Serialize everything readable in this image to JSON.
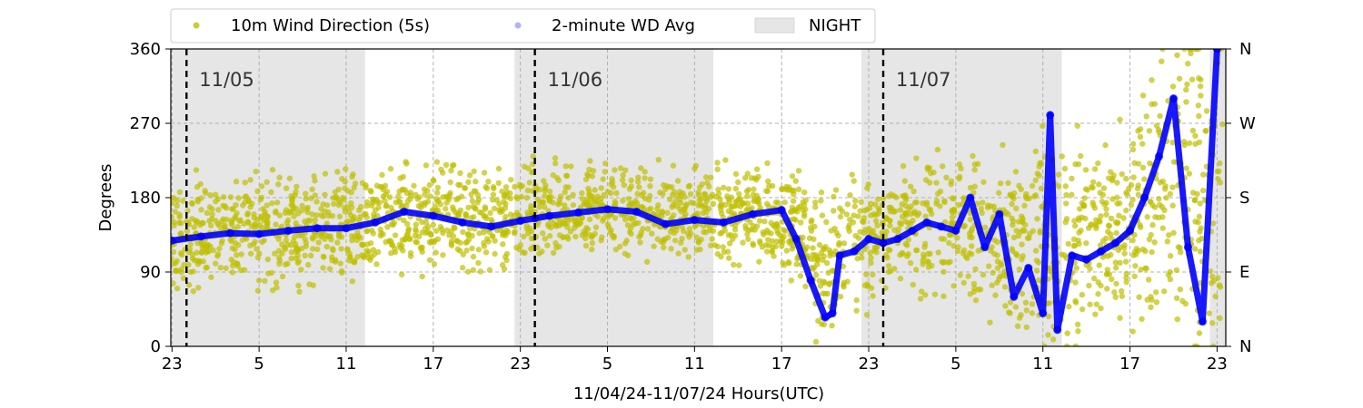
{
  "chart_data": {
    "type": "scatter",
    "title": "",
    "xlabel": "11/04/24-11/07/24  Hours(UTC)",
    "ylabel": "Degrees",
    "xlim": [
      -0.08,
      72.6
    ],
    "ylim": [
      0,
      360
    ],
    "x_unit": "hours since 23:00 UTC 11/04/24",
    "x_ticks": [
      {
        "x": 0,
        "label": "23"
      },
      {
        "x": 6,
        "label": "5"
      },
      {
        "x": 12,
        "label": "11"
      },
      {
        "x": 18,
        "label": "17"
      },
      {
        "x": 24,
        "label": "23"
      },
      {
        "x": 30,
        "label": "5"
      },
      {
        "x": 36,
        "label": "11"
      },
      {
        "x": 42,
        "label": "17"
      },
      {
        "x": 48,
        "label": "23"
      },
      {
        "x": 54,
        "label": "5"
      },
      {
        "x": 60,
        "label": "11"
      },
      {
        "x": 66,
        "label": "17"
      },
      {
        "x": 72,
        "label": "23"
      }
    ],
    "y_ticks": [
      0,
      90,
      180,
      270,
      360
    ],
    "y2_ticks": [
      {
        "y": 0,
        "label": "N"
      },
      {
        "y": 90,
        "label": "E"
      },
      {
        "y": 180,
        "label": "S"
      },
      {
        "y": 270,
        "label": "W"
      },
      {
        "y": 360,
        "label": "N"
      }
    ],
    "grid": true,
    "legend": {
      "placement": "above-top",
      "entries": [
        {
          "label": "10m Wind Direction (5s)",
          "type": "marker",
          "color": "#bfbf00"
        },
        {
          "label": "2-minute WD Avg",
          "type": "marker",
          "color": "#0000ff"
        },
        {
          "label": "NIGHT",
          "type": "patch",
          "color": "#e6e6e6"
        }
      ]
    },
    "night_spans": [
      [
        0,
        13.3
      ],
      [
        23.6,
        37.3
      ],
      [
        47.5,
        61.3
      ],
      [
        71.5,
        72.6
      ]
    ],
    "day_markers": [
      {
        "x": 1.0,
        "label": "11/05"
      },
      {
        "x": 25.0,
        "label": "11/06"
      },
      {
        "x": 49.0,
        "label": "11/07"
      }
    ],
    "series": [
      {
        "name": "2-minute WD Avg",
        "color": "#0000ff",
        "x": [
          0,
          2,
          4,
          6,
          8,
          10,
          12,
          14,
          16,
          18,
          20,
          22,
          24,
          25,
          26,
          28,
          30,
          32,
          34,
          36,
          38,
          40,
          42,
          43,
          44,
          45,
          45.5,
          46,
          47,
          48,
          49,
          50,
          51,
          52,
          53,
          54,
          55,
          56,
          57,
          58,
          59,
          60,
          60.5,
          61,
          62,
          63,
          64,
          65,
          66,
          67,
          68,
          69,
          70,
          71,
          72
        ],
        "y": [
          128,
          133,
          137,
          136,
          140,
          143,
          143,
          150,
          163,
          158,
          150,
          145,
          152,
          155,
          158,
          162,
          166,
          163,
          148,
          153,
          150,
          160,
          165,
          130,
          80,
          35,
          40,
          110,
          115,
          130,
          125,
          130,
          140,
          150,
          145,
          140,
          180,
          120,
          160,
          60,
          95,
          40,
          280,
          20,
          110,
          105,
          115,
          125,
          140,
          180,
          230,
          300,
          120,
          30,
          360
        ]
      },
      {
        "name": "10m Wind Direction (5s)",
        "color": "#bfbf00",
        "band": {
          "x": [
            0,
            4,
            8,
            12,
            16,
            20,
            24,
            28,
            32,
            36,
            40,
            43,
            45,
            47,
            50,
            55,
            58,
            61,
            64,
            66,
            68,
            70,
            72
          ],
          "low": [
            80,
            85,
            90,
            95,
            110,
            105,
            110,
            125,
            125,
            115,
            125,
            95,
            20,
            70,
            85,
            80,
            50,
            20,
            70,
            60,
            40,
            20,
            10
          ],
          "high": [
            185,
            190,
            192,
            195,
            205,
            200,
            200,
            210,
            205,
            195,
            205,
            195,
            150,
            190,
            200,
            215,
            210,
            230,
            210,
            240,
            360,
            360,
            360
          ]
        }
      }
    ]
  }
}
